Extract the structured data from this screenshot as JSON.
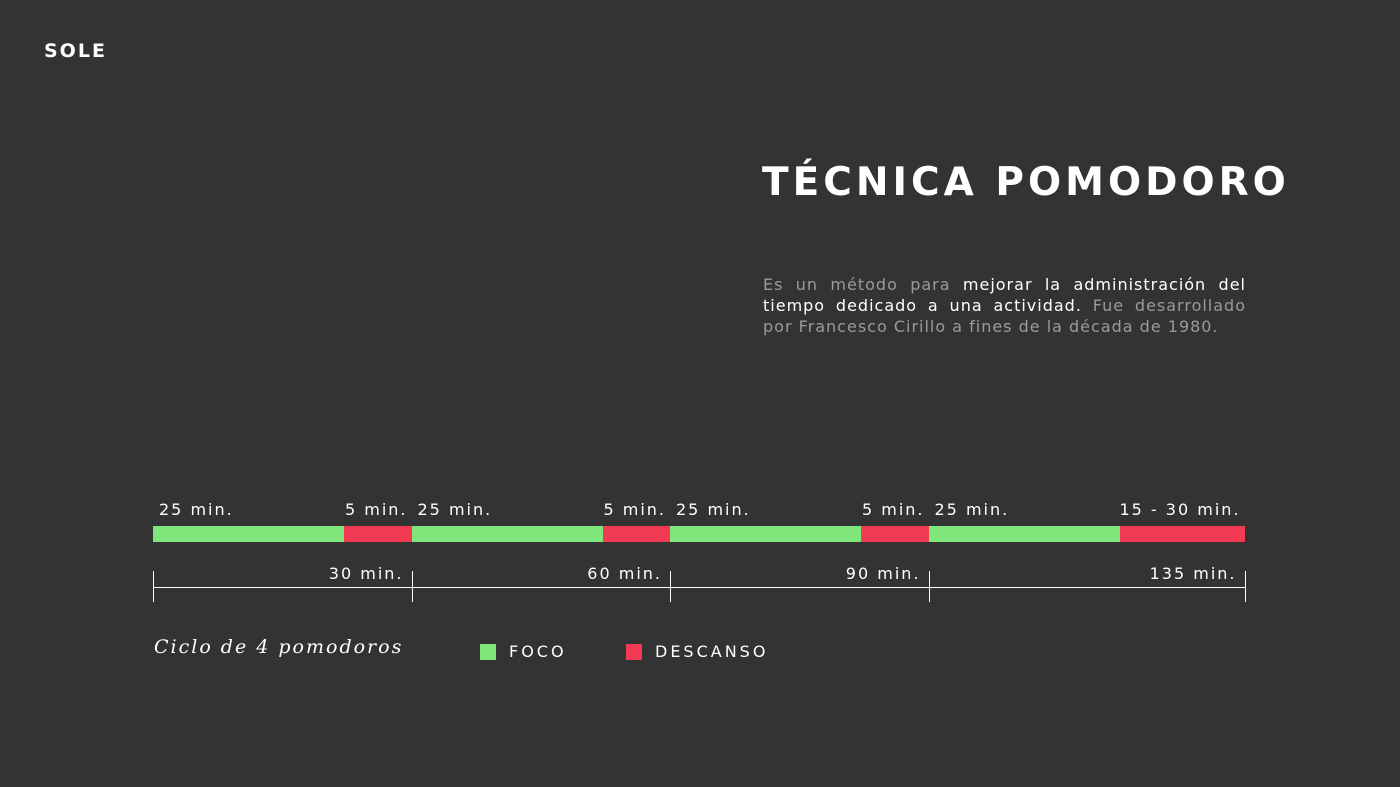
{
  "logo": "SOLE",
  "title": "TÉCNICA POMODORO",
  "description": {
    "part1": "Es un método para ",
    "highlight": "mejorar la administración del tiempo dedicado a una actividad.",
    "part2": " Fue desarrollado por Francesco Cirillo a fines de la década de 1980."
  },
  "colors": {
    "focus": "#7ee67a",
    "break": "#f23a52",
    "background": "#333333"
  },
  "timeline": {
    "segments": [
      {
        "type": "focus",
        "minutes": 25,
        "label": "25 min."
      },
      {
        "type": "break",
        "minutes": 5,
        "label": "5 min."
      },
      {
        "type": "focus",
        "minutes": 25,
        "label": "25 min."
      },
      {
        "type": "break",
        "minutes": 5,
        "label": "5 min."
      },
      {
        "type": "focus",
        "minutes": 25,
        "label": "25 min."
      },
      {
        "type": "break",
        "minutes": 5,
        "label": "5 min."
      },
      {
        "type": "focus",
        "minutes": 25,
        "label": "25 min."
      },
      {
        "type": "break",
        "minutes": "15-30",
        "label": "15 - 30 min."
      }
    ],
    "axis_ticks": [
      {
        "label": "30 min."
      },
      {
        "label": "60 min."
      },
      {
        "label": "90 min."
      },
      {
        "label": "135 min."
      }
    ]
  },
  "caption": "Ciclo de 4 pomodoros",
  "legend": [
    {
      "type": "focus",
      "label": "FOCO"
    },
    {
      "type": "break",
      "label": "DESCANSO"
    }
  ]
}
